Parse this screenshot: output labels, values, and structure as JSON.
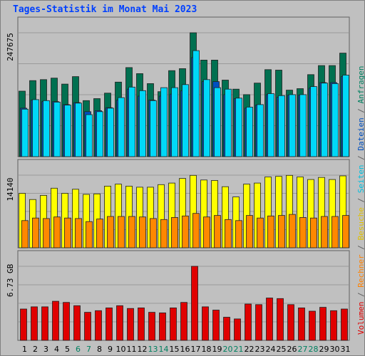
{
  "title": "Tages-Statistik im Monat Mai 2023",
  "legend": [
    {
      "text": "Volumen",
      "color": "#e00000"
    },
    {
      "text": " / ",
      "color": "#606060"
    },
    {
      "text": "Rechner",
      "color": "#ff8000"
    },
    {
      "text": " / ",
      "color": "#606060"
    },
    {
      "text": "Besuche",
      "color": "#e0c000"
    },
    {
      "text": " / ",
      "color": "#606060"
    },
    {
      "text": "Seiten",
      "color": "#00c0e0"
    },
    {
      "text": " / ",
      "color": "#606060"
    },
    {
      "text": "Dateien",
      "color": "#0050c0"
    },
    {
      "text": " / ",
      "color": "#606060"
    },
    {
      "text": "Anfragen",
      "color": "#008060"
    }
  ],
  "chart_data": {
    "type": "bar",
    "categories": [
      "1",
      "2",
      "3",
      "4",
      "5",
      "6",
      "7",
      "8",
      "9",
      "10",
      "11",
      "12",
      "13",
      "14",
      "15",
      "16",
      "17",
      "18",
      "19",
      "20",
      "21",
      "22",
      "23",
      "24",
      "25",
      "26",
      "27",
      "28",
      "29",
      "30",
      "31"
    ],
    "weekend_days": [
      "6",
      "7",
      "13",
      "14",
      "20",
      "21",
      "27",
      "28"
    ],
    "colors": {
      "requests": "#007050",
      "files": "#0050c0",
      "pages": "#00d8f8",
      "visits": "#ffff00",
      "hosts": "#ff8800",
      "volume": "#e00000",
      "weekend_label": "#008060",
      "weekday_label": "#000000"
    },
    "panels": [
      {
        "name": "requests",
        "max_label": "247675",
        "max": 247675,
        "series": [
          {
            "name": "Anfragen",
            "key": "requests",
            "values": [
              131000,
              152000,
              154000,
              157000,
              145000,
              160000,
              112000,
              116000,
              127000,
              149000,
              178000,
              166000,
              146000,
              130000,
              172000,
              176000,
              247675,
              193000,
              193000,
              153000,
              135000,
              124000,
              147000,
              174000,
              173000,
              133000,
              136000,
              164000,
              182000,
              182000,
              207000
            ]
          },
          {
            "name": "Dateien",
            "key": "files",
            "values": [
              97000,
              113000,
              110000,
              110000,
              104000,
              108000,
              90000,
              92000,
              98000,
              113000,
              135000,
              121000,
              113000,
              121000,
              125000,
              132000,
              198000,
              150000,
              150000,
              124000,
              116000,
              97000,
              103000,
              124000,
              119000,
              123000,
              123000,
              137000,
              148000,
              148000,
              160000
            ]
          },
          {
            "name": "Seiten",
            "key": "pages",
            "values": [
              95000,
              114000,
              112000,
              109000,
              103000,
              107000,
              84000,
              90000,
              97000,
              118000,
              139000,
              132000,
              112000,
              138000,
              138000,
              144000,
              212000,
              154000,
              138000,
              135000,
              117000,
              99000,
              104000,
              126000,
              122000,
              124000,
              124000,
              140000,
              147000,
              146000,
              163000
            ]
          }
        ]
      },
      {
        "name": "visits",
        "max_label": "14140",
        "max": 14140,
        "series": [
          {
            "name": "Besuche",
            "key": "visits",
            "values": [
              10600,
              9400,
              10200,
              11600,
              10600,
              11400,
              10400,
              10500,
              12000,
              12400,
              12000,
              11800,
              11800,
              12300,
              12600,
              13500,
              14100,
              13200,
              13100,
              11900,
              9900,
              12400,
              12600,
              13800,
              13900,
              14100,
              13800,
              13300,
              13700,
              13300,
              14000
            ]
          },
          {
            "name": "Rechner",
            "key": "hosts",
            "values": [
              5300,
              5800,
              5700,
              6000,
              5800,
              5700,
              5100,
              5600,
              6100,
              6100,
              6100,
              6000,
              5700,
              5500,
              5900,
              6200,
              6700,
              6000,
              6300,
              5500,
              5300,
              6300,
              5800,
              6200,
              6300,
              6500,
              5900,
              5800,
              6100,
              6100,
              6300
            ]
          }
        ]
      },
      {
        "name": "volume",
        "max_label": "6.73 GB",
        "max": 6.73,
        "series": [
          {
            "name": "Volumen",
            "key": "volume",
            "values": [
              2.85,
              3.05,
              3.05,
              3.55,
              3.45,
              3.15,
              2.55,
              2.7,
              2.95,
              3.15,
              2.9,
              2.95,
              2.55,
              2.5,
              2.95,
              3.45,
              6.73,
              3.05,
              2.75,
              2.1,
              1.95,
              3.3,
              3.25,
              3.85,
              3.8,
              3.25,
              2.95,
              2.65,
              3.0,
              2.7,
              2.85
            ]
          }
        ]
      }
    ]
  }
}
